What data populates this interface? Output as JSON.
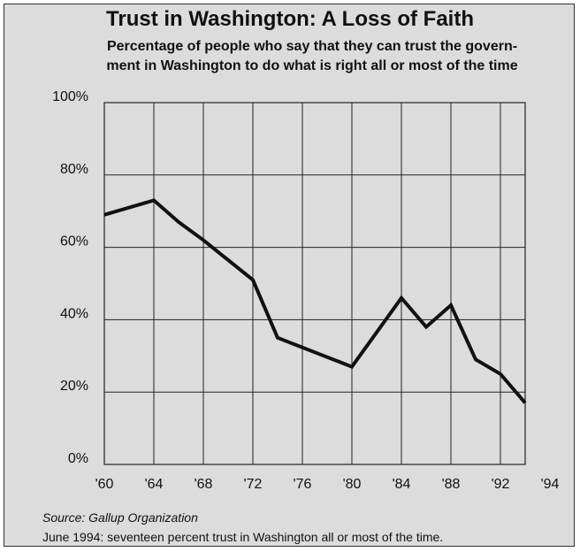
{
  "chart_data": {
    "type": "line",
    "title": "Trust in Washington: A Loss of Faith",
    "subtitle": "Percentage of people who say that they can trust the govern- ment in Washington to do what is right all or most of the time",
    "subtitle_lines": [
      "Percentage of people who say that they can trust the govern-",
      "ment in Washington to do what is right all or most of the time"
    ],
    "xlabel": "",
    "ylabel": "",
    "x_ticks": [
      "'60",
      "'64",
      "'68",
      "'72",
      "'76",
      "'80",
      "'84",
      "'88",
      "'92",
      "'94"
    ],
    "y_ticks": [
      "0%",
      "20%",
      "40%",
      "60%",
      "80%",
      "100%"
    ],
    "xlim": [
      1960,
      1994
    ],
    "ylim": [
      0,
      100
    ],
    "grid": true,
    "series": [
      {
        "x": [
          1960,
          1964,
          1966,
          1968,
          1972,
          1974,
          1980,
          1984,
          1986,
          1988,
          1990,
          1992,
          1994
        ],
        "values": [
          69,
          73,
          67,
          62,
          51,
          35,
          27,
          46,
          38,
          44,
          29,
          25,
          17
        ]
      }
    ],
    "source": "Source: Gallup Organization",
    "footnote": "June 1994: seventeen percent trust in Washington all or most of the time."
  },
  "colors": {
    "background": "#dcdcdc",
    "line": "#111111",
    "grid": "#222222"
  }
}
